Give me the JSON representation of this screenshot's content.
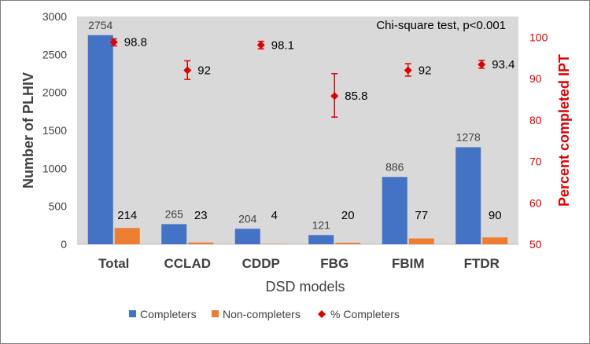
{
  "chart_data": {
    "type": "bar",
    "categories": [
      "Total",
      "CCLAD",
      "CDDP",
      "FBG",
      "FBIM",
      "FTDR"
    ],
    "series": [
      {
        "name": "Completers",
        "values": [
          2754,
          265,
          204,
          121,
          886,
          1278
        ],
        "color": "#4472c4",
        "labels": [
          "2754",
          "265",
          "204",
          "121",
          "886",
          "1278"
        ]
      },
      {
        "name": "Non-completers",
        "values": [
          214,
          23,
          4,
          20,
          77,
          90
        ],
        "color": "#ed7d31",
        "labels": [
          "214",
          "23",
          "4",
          "20",
          "77",
          "90"
        ]
      },
      {
        "name": "% Completers",
        "axis": "right",
        "values": [
          98.8,
          92,
          98.1,
          85.8,
          92,
          93.4
        ],
        "labels": [
          "98.8",
          "92",
          "98.1",
          "85.8",
          "92",
          "93.4"
        ],
        "error_low": [
          97.9,
          89.8,
          97.2,
          80.7,
          90.6,
          92.5
        ],
        "error_high": [
          99.6,
          94.3,
          99.0,
          91.2,
          93.6,
          94.4
        ],
        "color": "#e00000"
      }
    ],
    "xlabel": "DSD models",
    "ylabel": "Number of PLHIV",
    "y2label": "Percent completed IPT",
    "ylim": [
      0,
      3000
    ],
    "yticks": [
      "0",
      "500",
      "1000",
      "1500",
      "2000",
      "2500",
      "3000"
    ],
    "y2lim": [
      50,
      105
    ],
    "y2ticks": [
      "50",
      "60",
      "70",
      "80",
      "90",
      "100"
    ],
    "annotation": "Chi-square test, p<0.001",
    "legend_position": "bottom"
  }
}
